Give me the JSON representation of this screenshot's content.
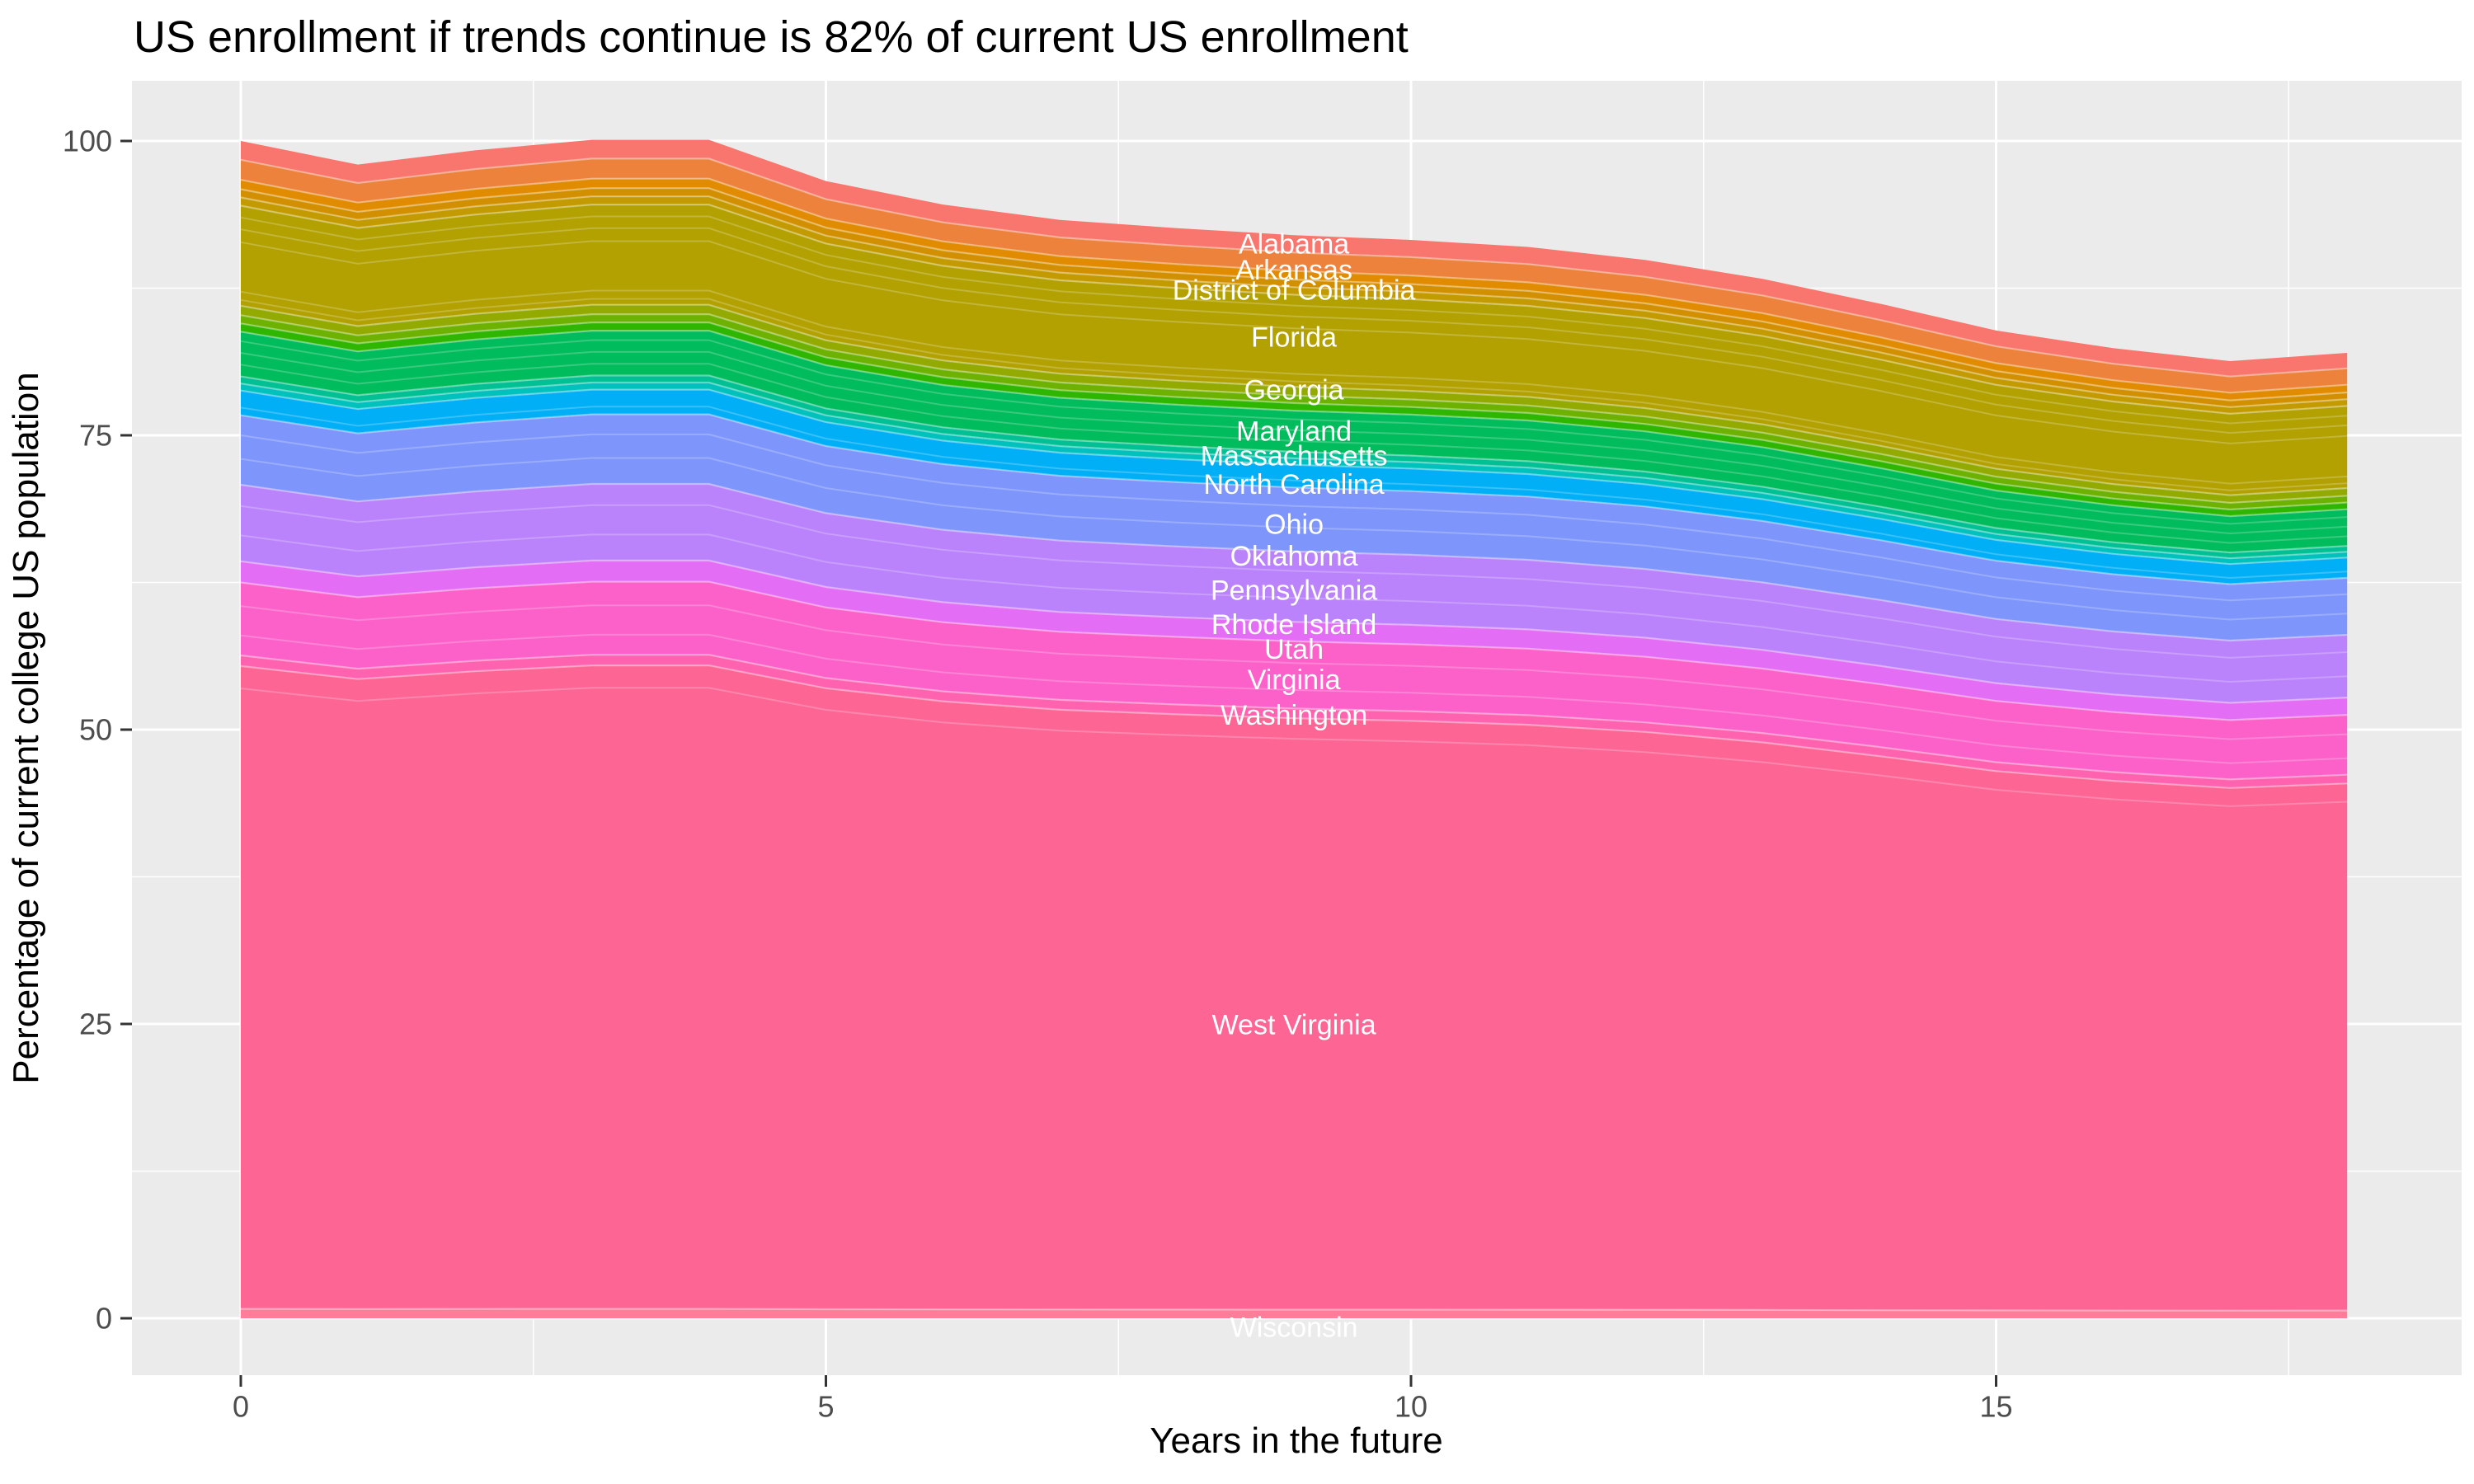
{
  "title": "US enrollment if trends continue is 82% of current US enrollment",
  "axes": {
    "x": {
      "title": "Years in the future",
      "tick_labels": [
        "0",
        "5",
        "10",
        "15"
      ]
    },
    "y": {
      "title": "Percentage of current college US population",
      "tick_labels": [
        "0",
        "25",
        "50",
        "75",
        "100"
      ]
    }
  },
  "style": {
    "background": "#FFFFFF",
    "panel_bg": "#EBEBEB",
    "grid_color": "#FFFFFF",
    "tick_text_color": "#4D4D4D",
    "tick_mark_color": "#333333",
    "title_color": "#000000",
    "axis_title_color": "#000000",
    "state_label_color": "#FFFFFF",
    "band_seam_color": "rgba(255,255,255,0.38)",
    "faint_seam_color": "rgba(255,255,255,0.22)"
  },
  "chart_data": {
    "type": "area",
    "stacked": true,
    "title": "US enrollment if trends continue is 82% of current US enrollment",
    "xlabel": "Years in the future",
    "ylabel": "Percentage of current college US population",
    "x": [
      0,
      1,
      2,
      3,
      4,
      5,
      6,
      7,
      8,
      9,
      10,
      11,
      12,
      13,
      14,
      15,
      16,
      17,
      18
    ],
    "total_percent": [
      100.0,
      98.0,
      99.2,
      100.1,
      100.1,
      96.6,
      94.6,
      93.3,
      92.6,
      92.0,
      91.6,
      91.0,
      89.9,
      88.3,
      86.2,
      83.9,
      82.4,
      81.3,
      82.0
    ],
    "x_ticks": [
      0,
      5,
      10,
      15
    ],
    "x_minor_ticks": [
      2.5,
      7.5,
      12.5,
      17.5
    ],
    "y_ticks": [
      0,
      25,
      50,
      75,
      100
    ],
    "y_minor_ticks": [
      12.5,
      37.5,
      62.5,
      87.5
    ],
    "xlim": [
      0,
      18
    ],
    "ylim": [
      0,
      100
    ],
    "legend": "none (labels drawn on chart)",
    "bands_note": "stacked state bands, share given as cumulative fraction measured from the top envelope",
    "bands": [
      {
        "group": "Alabama",
        "color": "#F8766D",
        "from_top": 0.0,
        "to_top": 0.016
      },
      {
        "group": "Arkansas",
        "color": "#EC823C",
        "from_top": 0.016,
        "to_top": 0.033
      },
      {
        "group": "unlabeled",
        "color": "#E08B00",
        "from_top": 0.033,
        "to_top": 0.041
      },
      {
        "group": "unlabeled",
        "color": "#D29000",
        "from_top": 0.041,
        "to_top": 0.048
      },
      {
        "group": "District of Columbia",
        "color": "#C39B00",
        "from_top": 0.048,
        "to_top": 0.055
      },
      {
        "group": "Florida",
        "color": "#B2A100",
        "from_top": 0.055,
        "to_top": 0.14
      },
      {
        "group": "Georgia",
        "color": "#93AA00",
        "from_top": 0.14,
        "to_top": 0.148
      },
      {
        "group": "unlabeled",
        "color": "#6DB200",
        "from_top": 0.148,
        "to_top": 0.155
      },
      {
        "group": "unlabeled",
        "color": "#2FB600",
        "from_top": 0.155,
        "to_top": 0.162
      },
      {
        "group": "Maryland",
        "color": "#00BC5C",
        "from_top": 0.162,
        "to_top": 0.2
      },
      {
        "group": "Massachusetts",
        "color": "#00C094",
        "from_top": 0.2,
        "to_top": 0.206
      },
      {
        "group": "unlabeled",
        "color": "#00C1BC",
        "from_top": 0.206,
        "to_top": 0.212
      },
      {
        "group": "North Carolina",
        "color": "#00AFF6",
        "from_top": 0.212,
        "to_top": 0.233
      },
      {
        "group": "Ohio",
        "color": "#7E96FC",
        "from_top": 0.233,
        "to_top": 0.292
      },
      {
        "group": "Pennsylvania",
        "color": "#BA83FC",
        "from_top": 0.292,
        "to_top": 0.357
      },
      {
        "group": "Rhode Island",
        "color": "#E36EF5",
        "from_top": 0.357,
        "to_top": 0.375
      },
      {
        "group": "Virginia",
        "color": "#FC61C9",
        "from_top": 0.375,
        "to_top": 0.437
      },
      {
        "group": "Washington",
        "color": "#FF63B0",
        "from_top": 0.437,
        "to_top": 0.446
      },
      {
        "group": "West Virginia",
        "color": "#FD6595",
        "from_top": 0.446,
        "to_top": 0.992
      },
      {
        "group": "Wisconsin",
        "color": "#FF7D98",
        "from_top": 0.992,
        "to_top": 1.0
      }
    ],
    "faint_state_boundaries_from_top": [
      0.065,
      0.075,
      0.086,
      0.128,
      0.135,
      0.17,
      0.18,
      0.19,
      0.2265,
      0.25,
      0.27,
      0.31,
      0.335,
      0.395,
      0.42,
      0.465
    ],
    "label_x_year": 9,
    "state_labels": [
      {
        "name": "Alabama",
        "y": 91.2
      },
      {
        "name": "Arkansas",
        "y": 89.0
      },
      {
        "name": "District of Columbia",
        "y": 87.3
      },
      {
        "name": "Florida",
        "y": 83.3
      },
      {
        "name": "Georgia",
        "y": 78.8
      },
      {
        "name": "Maryland",
        "y": 75.3
      },
      {
        "name": "Massachusetts",
        "y": 73.2
      },
      {
        "name": "North Carolina",
        "y": 70.8
      },
      {
        "name": "Ohio",
        "y": 67.4
      },
      {
        "name": "Oklahoma",
        "y": 64.7
      },
      {
        "name": "Pennsylvania",
        "y": 61.8
      },
      {
        "name": "Rhode Island",
        "y": 58.9
      },
      {
        "name": "Utah",
        "y": 56.8
      },
      {
        "name": "Virginia",
        "y": 54.2
      },
      {
        "name": "Washington",
        "y": 51.2
      },
      {
        "name": "West Virginia",
        "y": 24.9
      },
      {
        "name": "Wisconsin",
        "y": -0.8
      }
    ]
  }
}
